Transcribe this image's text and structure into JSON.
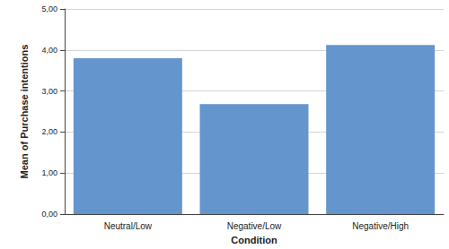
{
  "chart_data": {
    "type": "bar",
    "x_label": "Condition",
    "y_label": "Mean of Purchase intentions",
    "categories": [
      "Neutral/Low",
      "Negative/Low",
      "Negative/High"
    ],
    "values": [
      3.8,
      2.68,
      4.12
    ],
    "color": "#6495cd",
    "ylim": [
      0,
      5
    ],
    "yticks": [
      {
        "value": 0,
        "label": "0,00"
      },
      {
        "value": 1,
        "label": "1,00"
      },
      {
        "value": 2,
        "label": "2,00"
      },
      {
        "value": 3,
        "label": "3,00"
      },
      {
        "value": 4,
        "label": "4,00"
      },
      {
        "value": 5,
        "label": "5,00"
      }
    ],
    "grid": true
  }
}
